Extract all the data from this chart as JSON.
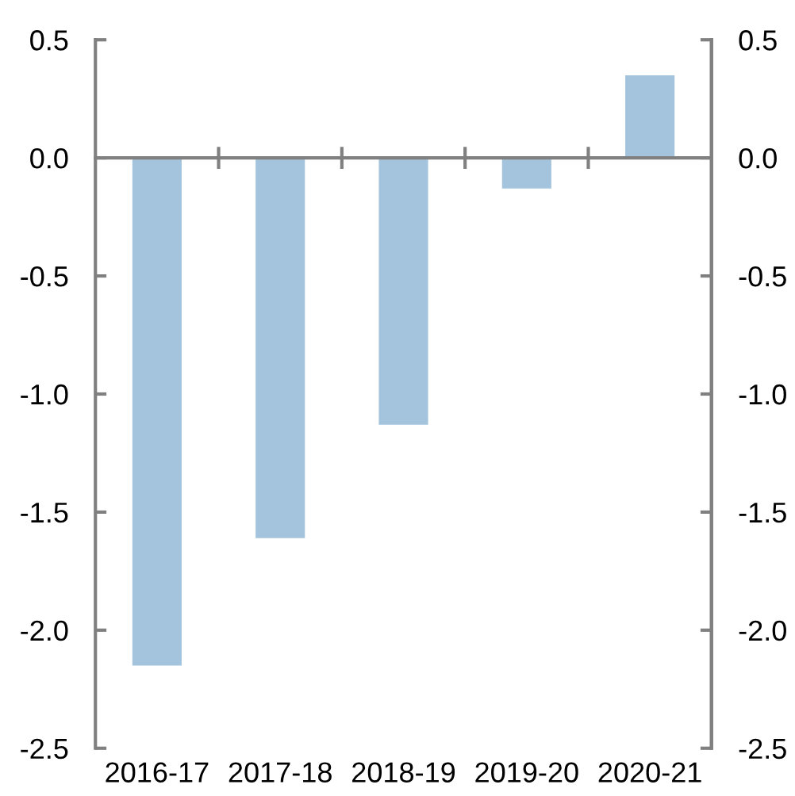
{
  "chart_data": {
    "type": "bar",
    "categories": [
      "2016-17",
      "2017-18",
      "2018-19",
      "2019-20",
      "2020-21"
    ],
    "series": [
      {
        "color": "#a3c4dc",
        "values": [
          -2.15,
          -1.61,
          -1.13,
          -0.13,
          0.35
        ]
      }
    ],
    "ylim": [
      -2.5,
      0.5
    ],
    "yticks": [
      {
        "value": 0.5,
        "label": "0.5"
      },
      {
        "value": 0,
        "label": "0.0"
      },
      {
        "value": -0.5,
        "label": "-0.5"
      },
      {
        "value": -1,
        "label": "-1.0"
      },
      {
        "value": -1.5,
        "label": "-1.5"
      },
      {
        "value": -2,
        "label": "-2.0"
      },
      {
        "value": -2.5,
        "label": "-2.5"
      }
    ],
    "y2lim": [
      -2.5,
      0.5
    ],
    "y2ticks": [
      {
        "value": 0.5,
        "label": "0.5"
      },
      {
        "value": 0,
        "label": "0.0"
      },
      {
        "value": -0.5,
        "label": "-0.5"
      },
      {
        "value": -1,
        "label": "-1.0"
      },
      {
        "value": -1.5,
        "label": "-1.5"
      },
      {
        "value": -2,
        "label": "-2.0"
      },
      {
        "value": -2.5,
        "label": "-2.5"
      }
    ],
    "legend": false
  }
}
